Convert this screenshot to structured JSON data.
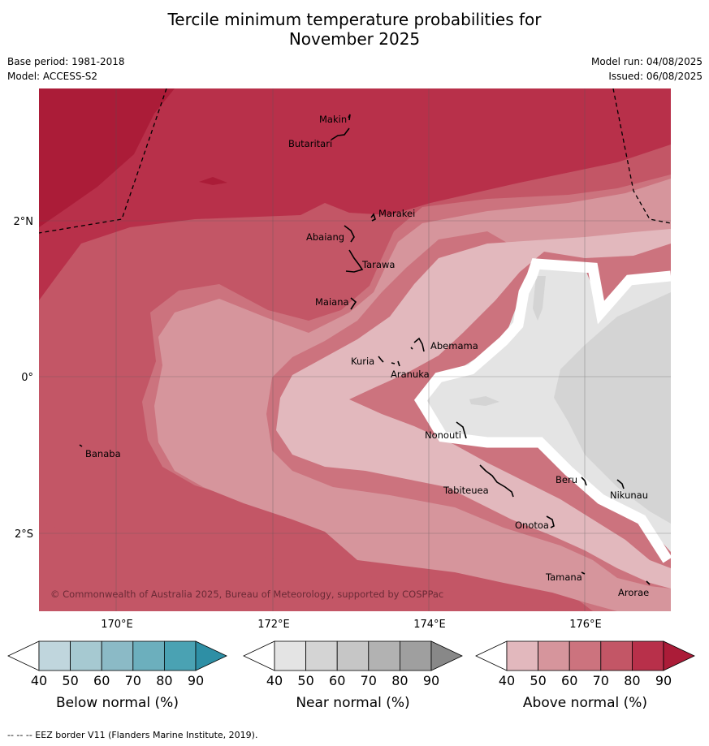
{
  "title_line1": "Tercile minimum temperature probabilities for",
  "title_line2": "November 2025",
  "base_period": "Base period: 1981-2018",
  "model": "Model: ACCESS-S2",
  "model_run": "Model run: 04/08/2025",
  "issued": "Issued: 06/08/2025",
  "copyright": "© Commonwealth of Australia 2025, Bureau of Meteorology, supported by COSPPac",
  "footer": "--  --  -- EEZ border V11 (Flanders Marine Institute, 2019).",
  "lat_labels": [
    "2°N",
    "0°",
    "2°S"
  ],
  "lon_labels": [
    "170°E",
    "172°E",
    "174°E",
    "176°E"
  ],
  "islands": [
    "Makin",
    "Butaritari",
    "Marakei",
    "Abaiang",
    "Tarawa",
    "Maiana",
    "Abemama",
    "Kuria",
    "Aranuka",
    "Banaba",
    "Nonouti",
    "Beru",
    "Nikunau",
    "Tabiteuea",
    "Onotoa",
    "Tamana",
    "Arorae"
  ],
  "colorbars": [
    {
      "title": "Below normal (%)",
      "ticks": [
        "40",
        "50",
        "60",
        "70",
        "80",
        "90"
      ],
      "colors": [
        "#c0d6dd",
        "#a6c9d1",
        "#8bbac6",
        "#6cafbd",
        "#4aa2b3"
      ],
      "arrow": "#2e8fa5"
    },
    {
      "title": "Near normal (%)",
      "ticks": [
        "40",
        "50",
        "60",
        "70",
        "80",
        "90"
      ],
      "colors": [
        "#e4e4e4",
        "#d4d4d4",
        "#c6c6c6",
        "#b2b2b2",
        "#9f9f9f"
      ],
      "arrow": "#888888"
    },
    {
      "title": "Above normal (%)",
      "ticks": [
        "40",
        "50",
        "60",
        "70",
        "80",
        "90"
      ],
      "colors": [
        "#e2b8bd",
        "#d6959c",
        "#cc737e",
        "#c35666",
        "#b8304a"
      ],
      "arrow": "#ab1c38"
    }
  ]
}
